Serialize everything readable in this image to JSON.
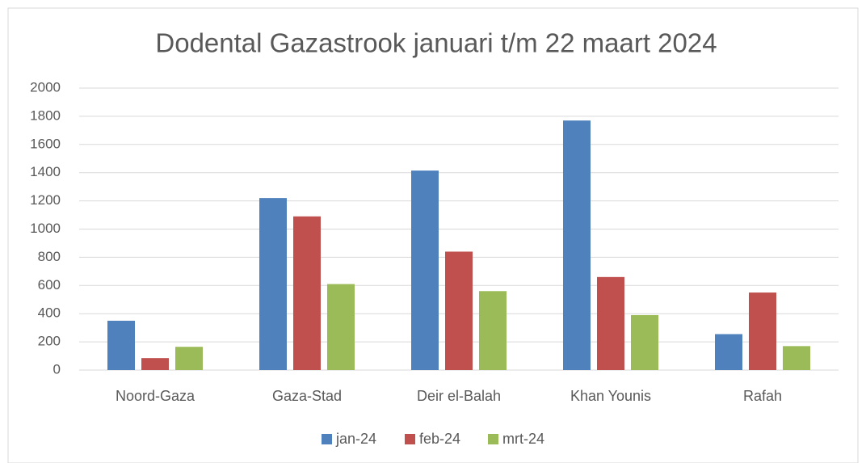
{
  "chart_data": {
    "type": "bar",
    "title": "Dodental Gazastrook januari t/m 22 maart 2024",
    "categories": [
      "Noord-Gaza",
      "Gaza-Stad",
      "Deir el-Balah",
      "Khan Younis",
      "Rafah"
    ],
    "series": [
      {
        "name": "jan-24",
        "color": "#4f81bd",
        "values": [
          350,
          1220,
          1415,
          1770,
          255
        ]
      },
      {
        "name": "feb-24",
        "color": "#c0504d",
        "values": [
          85,
          1090,
          840,
          660,
          550
        ]
      },
      {
        "name": "mrt-24",
        "color": "#9bbb59",
        "values": [
          165,
          610,
          560,
          390,
          170
        ]
      }
    ],
    "ylim": [
      0,
      2000
    ],
    "yticks": [
      0,
      200,
      400,
      600,
      800,
      1000,
      1200,
      1400,
      1600,
      1800,
      2000
    ],
    "grid": true,
    "legend": "bottom"
  }
}
